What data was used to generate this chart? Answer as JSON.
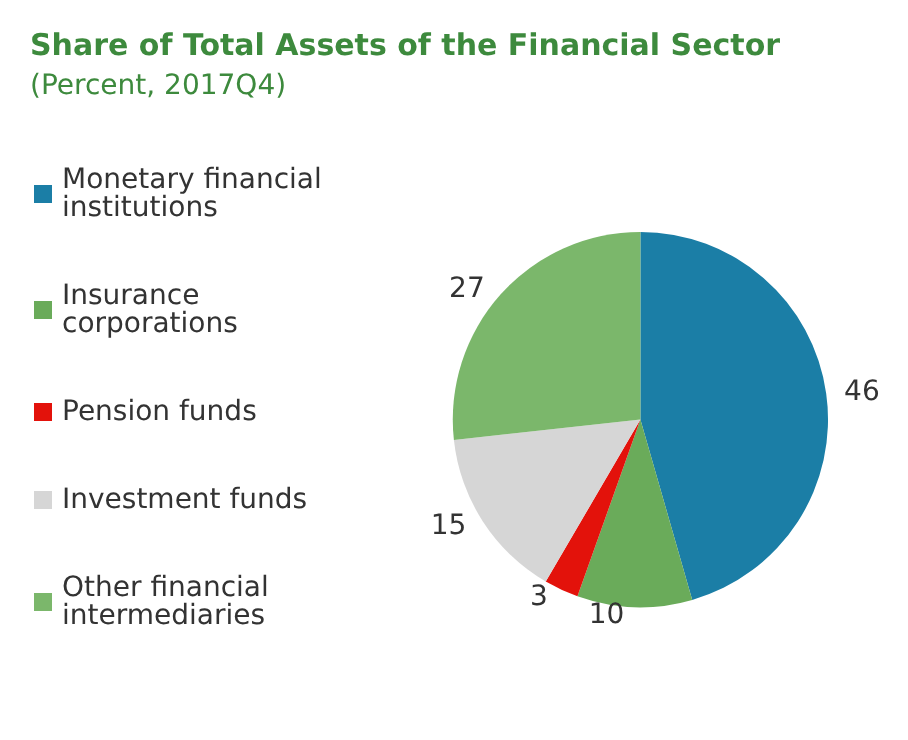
{
  "chart_data": {
    "type": "pie",
    "title": "Share of Total Assets of the Financial Sector",
    "subtitle": "(Percent, 2017Q4)",
    "categories": [
      "Monetary financial institutions",
      "Insurance corporations",
      "Pension funds",
      "Investment funds",
      "Other financial intermediaries"
    ],
    "values": [
      46,
      10,
      3,
      15,
      27
    ],
    "colors": [
      "#1b7ea6",
      "#6aab5a",
      "#e3120b",
      "#d6d6d6",
      "#7bb76b"
    ],
    "data_labels": true,
    "legend": "left"
  }
}
